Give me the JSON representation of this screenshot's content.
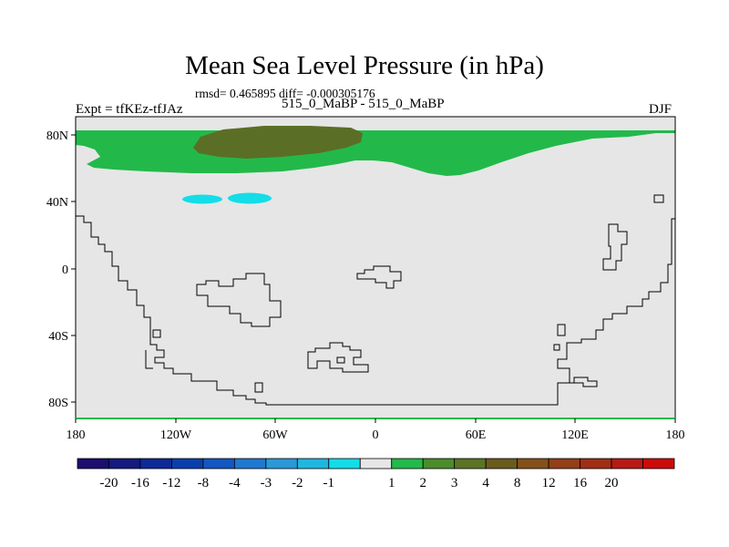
{
  "title": "Mean Sea Level Pressure (in hPa)",
  "stats": "rmsd= 0.465895 diff= -0.000305176",
  "expt": "Expt = tfKEz-tfJAz",
  "runs": "515_0_MaBP - 515_0_MaBP",
  "season": "DJF",
  "lat_ticks": [
    "80N",
    "40N",
    "0",
    "40S",
    "80S"
  ],
  "lon_ticks": [
    "180",
    "120W",
    "60W",
    "0",
    "60E",
    "120E",
    "180"
  ],
  "colorbar": {
    "colors": [
      "#1b0e6e",
      "#141a7e",
      "#0d2a96",
      "#0a3fab",
      "#1257c2",
      "#1f79cf",
      "#2b98d8",
      "#1fb7df",
      "#14dde8",
      "#e6e6e6",
      "#22b94a",
      "#4b8c2a",
      "#5b7324",
      "#6a5b1c",
      "#84511a",
      "#933f18",
      "#a12d15",
      "#b51b14",
      "#cc0a0a"
    ],
    "labels": [
      "-20",
      "-16",
      "-12",
      "-8",
      "-4",
      "-3",
      "-2",
      "-1",
      "1",
      "2",
      "3",
      "4",
      "8",
      "12",
      "16",
      "20"
    ]
  },
  "colors": {
    "background_field": "#e6e6e6",
    "positive_2": "#22b94a",
    "positive_3": "#5b6e25",
    "negative_2": "#14dde8"
  }
}
